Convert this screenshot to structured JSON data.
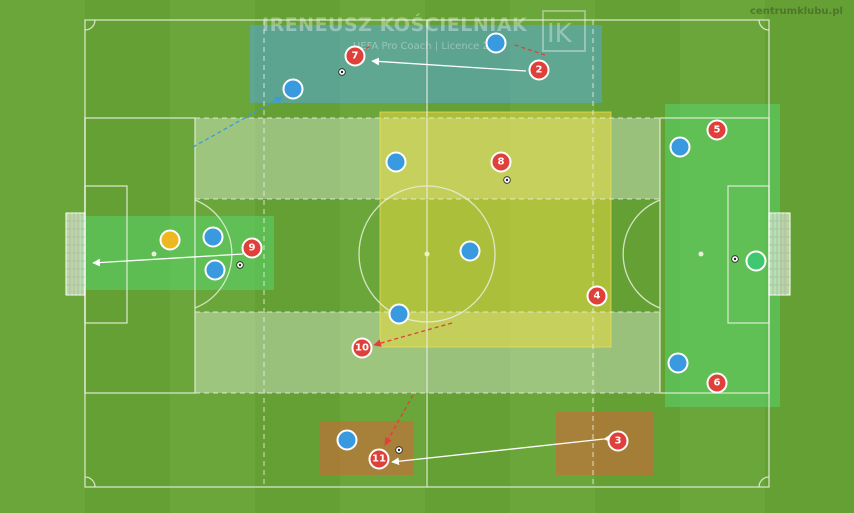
{
  "watermark": {
    "title": "IRENEUSZ KOŚCIELNIAK",
    "subtitle": "UEFA Pro Coach  |  Licence 227",
    "logo": "IK"
  },
  "site": "centrumklubu.pl",
  "colors": {
    "grass_light": "#6aa33a",
    "grass_dark": "#5f962f",
    "line": "#e8f0dc",
    "red_team": "#e0403a",
    "blue_team": "#3a9ae0",
    "keeper_yellow": "#f0b820",
    "keeper_green": "#40c870"
  },
  "red_players": [
    {
      "number": "7"
    },
    {
      "number": "2"
    },
    {
      "number": "5"
    },
    {
      "number": "8"
    },
    {
      "number": "9"
    },
    {
      "number": "4"
    },
    {
      "number": "10"
    },
    {
      "number": "6"
    },
    {
      "number": "3"
    },
    {
      "number": "11"
    }
  ]
}
